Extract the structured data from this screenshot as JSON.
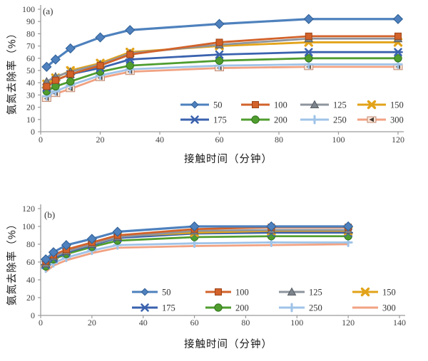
{
  "figure": {
    "description": "Two stacked line charts of ammonia nitrogen removal rate vs contact time",
    "panel_a_label": "(a)",
    "panel_b_label": "(b)"
  },
  "chart_data": [
    {
      "type": "line",
      "panel_label": "(a)",
      "xlabel": "接触时间（分钟）",
      "ylabel": "氨氮去除率（%）",
      "xlim": [
        0,
        120
      ],
      "ylim": [
        0,
        100
      ],
      "xticks": [
        0,
        20,
        40,
        60,
        80,
        100,
        120
      ],
      "yticks": [
        0,
        10,
        20,
        30,
        40,
        50,
        60,
        70,
        80,
        90,
        100
      ],
      "grid": false,
      "legend_position": "inside-lower-right",
      "x": [
        2,
        5,
        10,
        20,
        30,
        60,
        90,
        120
      ],
      "series": [
        {
          "name": "50",
          "color": "#4E81BD",
          "marker": "diamond",
          "values": [
            53,
            59,
            68,
            77,
            83,
            88,
            92,
            92
          ]
        },
        {
          "name": "100",
          "color": "#D2622A",
          "marker": "square",
          "values": [
            37,
            42,
            47,
            54,
            63,
            73,
            78,
            78
          ]
        },
        {
          "name": "125",
          "color": "#8E959D",
          "marker": "triangle",
          "values": [
            41,
            45,
            49,
            55,
            64,
            71,
            76,
            76
          ]
        },
        {
          "name": "150",
          "color": "#E2A319",
          "marker": "x",
          "values": [
            39,
            44,
            50,
            56,
            65,
            70,
            73,
            73
          ]
        },
        {
          "name": "175",
          "color": "#3A62AE",
          "marker": "asterisk",
          "values": [
            36,
            42,
            47,
            52,
            59,
            63,
            65,
            65
          ]
        },
        {
          "name": "200",
          "color": "#4F9D2F",
          "marker": "circle",
          "values": [
            33,
            37,
            41,
            49,
            54,
            58,
            60,
            60
          ]
        },
        {
          "name": "250",
          "color": "#9FC3E8",
          "marker": "plus",
          "values": [
            29,
            33,
            38,
            46,
            51,
            54,
            55,
            55
          ]
        },
        {
          "name": "300",
          "color": "#F1A282",
          "marker": "flag",
          "values": [
            27,
            31,
            35,
            44,
            49,
            52,
            53,
            53
          ]
        }
      ]
    },
    {
      "type": "line",
      "panel_label": "(b)",
      "xlabel": "接触时间（分钟）",
      "ylabel": "氨氮去除率（%）",
      "xlim": [
        0,
        140
      ],
      "ylim": [
        0,
        120
      ],
      "xticks": [
        0,
        20,
        40,
        60,
        80,
        100,
        120,
        140
      ],
      "yticks": [
        0,
        20,
        40,
        60,
        80,
        100,
        120
      ],
      "grid": false,
      "legend_position": "inside-lower-right",
      "x": [
        2,
        5,
        10,
        20,
        30,
        60,
        90,
        120
      ],
      "series": [
        {
          "name": "50",
          "color": "#4E81BD",
          "marker": "diamond",
          "values": [
            63,
            71,
            79,
            86,
            94,
            100,
            100,
            100
          ]
        },
        {
          "name": "100",
          "color": "#D2622A",
          "marker": "square",
          "values": [
            61,
            68,
            74,
            82,
            90,
            97,
            99,
            99
          ]
        },
        {
          "name": "125",
          "color": "#8E959D",
          "marker": "triangle",
          "values": [
            58,
            66,
            72,
            80,
            88,
            95,
            96,
            96
          ]
        },
        {
          "name": "150",
          "color": "#E2A319",
          "marker": "x",
          "values": [
            59,
            67,
            73,
            81,
            89,
            93,
            95,
            95
          ]
        },
        {
          "name": "175",
          "color": "#3A62AE",
          "marker": "asterisk",
          "values": [
            57,
            64,
            71,
            79,
            87,
            92,
            93,
            93
          ]
        },
        {
          "name": "200",
          "color": "#4F9D2F",
          "marker": "circle",
          "values": [
            55,
            63,
            69,
            77,
            84,
            88,
            89,
            89
          ]
        },
        {
          "name": "250",
          "color": "#9FC3E8",
          "marker": "plus",
          "values": [
            53,
            59,
            65,
            73,
            79,
            81,
            82,
            82
          ]
        },
        {
          "name": "300",
          "color": "#F1A282",
          "marker": "none",
          "values": [
            49,
            56,
            62,
            70,
            76,
            78,
            79,
            80
          ]
        }
      ]
    }
  ]
}
